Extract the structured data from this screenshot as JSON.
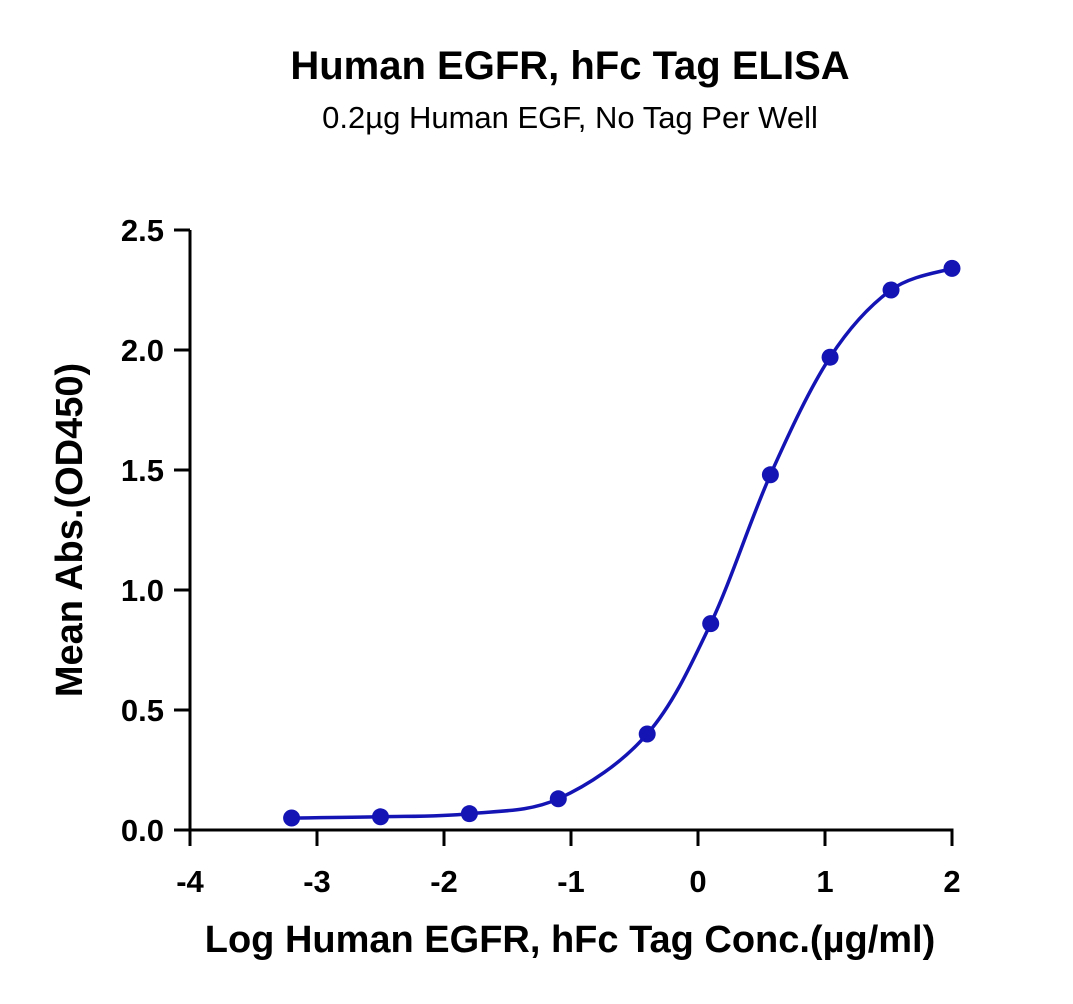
{
  "chart_data": {
    "type": "scatter",
    "title": "Human EGFR, hFc Tag ELISA",
    "subtitle": "0.2µg Human EGF, No Tag Per Well",
    "xlabel": "Log Human EGFR, hFc Tag Conc.(µg/ml)",
    "ylabel": "Mean Abs.(OD450)",
    "xlim": [
      -4,
      2
    ],
    "ylim": [
      0,
      2.5
    ],
    "x_ticks": [
      -4,
      -3,
      -2,
      -1,
      0,
      1,
      2
    ],
    "x_tick_labels": [
      "-4",
      "-3",
      "-2",
      "-1",
      "0",
      "1",
      "2"
    ],
    "y_ticks": [
      0,
      0.5,
      1.0,
      1.5,
      2.0,
      2.5
    ],
    "y_tick_labels": [
      "0.0",
      "0.5",
      "1.0",
      "1.5",
      "2.0",
      "2.5"
    ],
    "grid": false,
    "color": "#1414b4",
    "series": [
      {
        "x": [
          -3.2,
          -2.5,
          -1.8,
          -1.1,
          -0.4,
          0.1,
          0.57,
          1.04,
          1.52,
          2.0
        ],
        "y": [
          0.05,
          0.055,
          0.068,
          0.13,
          0.4,
          0.86,
          1.48,
          1.97,
          2.25,
          2.34
        ],
        "fit": "sigmoid"
      }
    ]
  }
}
